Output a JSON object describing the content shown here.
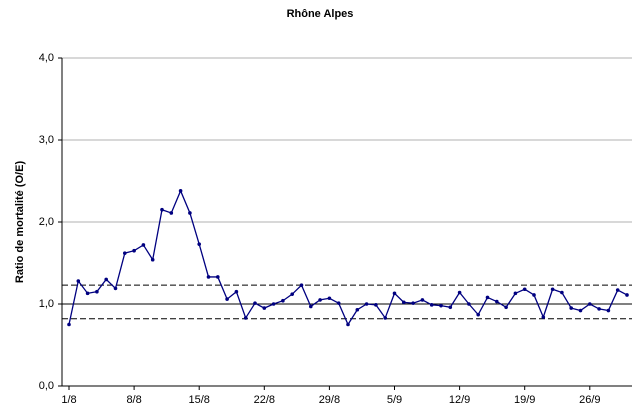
{
  "chart_data": {
    "type": "line",
    "title": "Rhône Alpes",
    "y_label": "Ratio de mortalité (O/E)",
    "categories": [
      "1/8",
      null,
      null,
      null,
      null,
      null,
      null,
      "8/8",
      null,
      null,
      null,
      null,
      null,
      null,
      "15/8",
      null,
      null,
      null,
      null,
      null,
      null,
      "22/8",
      null,
      null,
      null,
      null,
      null,
      null,
      "29/8",
      null,
      null,
      null,
      null,
      null,
      null,
      "5/9",
      null,
      null,
      null,
      null,
      null,
      null,
      "12/9",
      null,
      null,
      null,
      null,
      null,
      null,
      "19/9",
      null,
      null,
      null,
      null,
      null,
      null,
      "26/9",
      null,
      null,
      null,
      null
    ],
    "series": [
      {
        "color": "#000080",
        "values": [
          0.75,
          1.28,
          1.13,
          1.15,
          1.3,
          1.19,
          1.62,
          1.65,
          1.72,
          1.54,
          2.15,
          2.11,
          2.38,
          2.11,
          1.73,
          1.33,
          1.33,
          1.06,
          1.15,
          0.83,
          1.01,
          0.95,
          1.0,
          1.04,
          1.12,
          1.23,
          0.97,
          1.05,
          1.07,
          1.01,
          0.75,
          0.93,
          1.0,
          0.99,
          0.83,
          1.13,
          1.02,
          1.01,
          1.05,
          0.99,
          0.98,
          0.96,
          1.14,
          1.0,
          0.87,
          1.08,
          1.03,
          0.96,
          1.13,
          1.18,
          1.11,
          0.84,
          1.18,
          1.14,
          0.95,
          0.92,
          1.0,
          0.94,
          0.92,
          1.17,
          1.11
        ]
      }
    ],
    "reference_lines": [
      {
        "value": 1,
        "dashed": false
      },
      {
        "value": 1.23,
        "dashed": true
      },
      {
        "value": 0.82,
        "dashed": true
      }
    ],
    "ylim": [
      0,
      4
    ],
    "yticks": [
      {
        "value": 0,
        "label": "0,0"
      },
      {
        "value": 1,
        "label": "1,0"
      },
      {
        "value": 2,
        "label": "2,0"
      },
      {
        "value": 3,
        "label": "3,0"
      },
      {
        "value": 4,
        "label": "4,0"
      }
    ],
    "grid": true
  }
}
